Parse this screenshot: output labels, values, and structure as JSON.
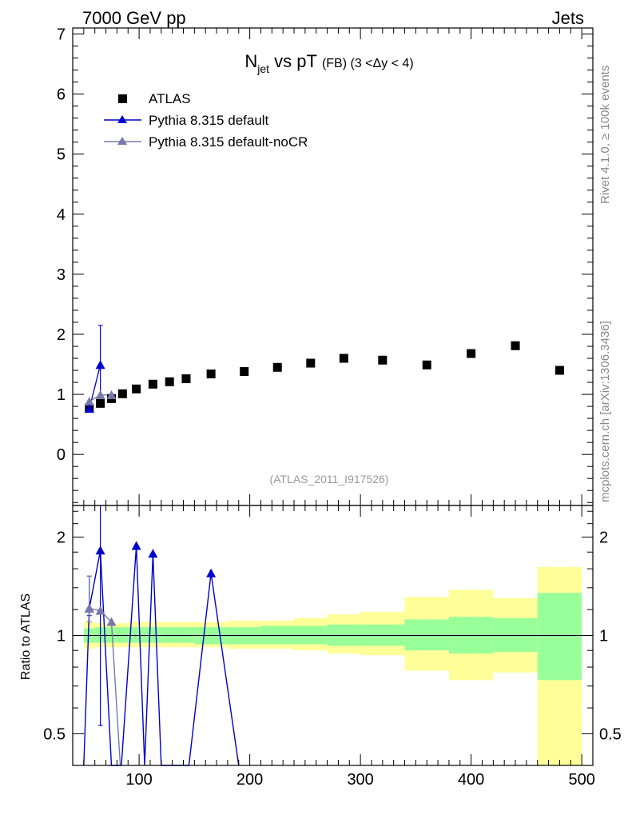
{
  "header": {
    "left": "7000 GeV pp",
    "right": "Jets"
  },
  "side_labels": {
    "rivet": "Rivet 4.1.0, ≥ 100k events",
    "mcplots": "mcplots.cern.ch [arXiv:1306.3436]"
  },
  "title": {
    "main": "N",
    "sub": "jet",
    "rest": " vs pT",
    "cut": "(FB) (3 <Δy < 4)"
  },
  "watermark": "(ATLAS_2011_I917526)",
  "legend": {
    "atlas": "ATLAS",
    "default": "Pythia 8.315 default",
    "nocr": "Pythia 8.315 default-noCR"
  },
  "colors": {
    "atlas": "#000000",
    "default": "#0000cc",
    "nocr": "#7878aa",
    "band_inner": "#99ff99",
    "band_outer": "#ffff99"
  },
  "chart_data": [
    {
      "type": "scatter",
      "panel": "main",
      "title": "N_jet vs pT (FB) (3 < Δy < 4)",
      "xlabel": "",
      "ylabel": "",
      "xlim": [
        40,
        510
      ],
      "ylim": [
        -0.85,
        7.1
      ],
      "yticks": [
        "0",
        "1",
        "2",
        "3",
        "4",
        "5",
        "6",
        "7"
      ],
      "series": [
        {
          "name": "ATLAS",
          "x": [
            55,
            65,
            75,
            85,
            97.5,
            112.5,
            127.5,
            142.5,
            165,
            195,
            225,
            255,
            285,
            320,
            360,
            400,
            440,
            480
          ],
          "y": [
            0.77,
            0.85,
            0.93,
            1.01,
            1.09,
            1.17,
            1.21,
            1.26,
            1.34,
            1.38,
            1.45,
            1.52,
            1.6,
            1.57,
            1.49,
            1.68,
            1.81,
            1.4
          ]
        },
        {
          "name": "Pythia 8.315 default",
          "x": [
            55,
            65
          ],
          "y": [
            0.76,
            1.49
          ],
          "err": [
            0.05,
            0.66
          ]
        },
        {
          "name": "Pythia 8.315 default-noCR",
          "x": [
            55,
            65,
            75
          ],
          "y": [
            0.88,
            0.99,
            0.99
          ]
        }
      ]
    },
    {
      "type": "line",
      "panel": "ratio",
      "ylabel": "Ratio to ATLAS",
      "xlabel": "",
      "xlim": [
        40,
        510
      ],
      "ylim": [
        0.4,
        2.5
      ],
      "log_y": true,
      "yticks": [
        "0.5",
        "1",
        "2"
      ],
      "xticks": [
        "100",
        "200",
        "300",
        "400",
        "500"
      ],
      "band_edges": [
        50,
        60,
        70,
        80,
        90,
        105,
        120,
        135,
        150,
        180,
        210,
        240,
        270,
        300,
        340,
        380,
        420,
        460,
        500
      ],
      "band_inner": [
        [
          0.95,
          1.05
        ],
        [
          0.95,
          1.06
        ],
        [
          0.95,
          1.06
        ],
        [
          0.95,
          1.06
        ],
        [
          0.95,
          1.06
        ],
        [
          0.95,
          1.06
        ],
        [
          0.95,
          1.06
        ],
        [
          0.95,
          1.06
        ],
        [
          0.94,
          1.06
        ],
        [
          0.94,
          1.06
        ],
        [
          0.94,
          1.07
        ],
        [
          0.94,
          1.07
        ],
        [
          0.93,
          1.08
        ],
        [
          0.93,
          1.08
        ],
        [
          0.9,
          1.12
        ],
        [
          0.88,
          1.14
        ],
        [
          0.89,
          1.13
        ],
        [
          0.73,
          1.35
        ]
      ],
      "band_outer": [
        [
          0.91,
          1.1
        ],
        [
          0.92,
          1.09
        ],
        [
          0.92,
          1.09
        ],
        [
          0.92,
          1.09
        ],
        [
          0.92,
          1.1
        ],
        [
          0.92,
          1.1
        ],
        [
          0.92,
          1.1
        ],
        [
          0.92,
          1.1
        ],
        [
          0.92,
          1.1
        ],
        [
          0.91,
          1.11
        ],
        [
          0.91,
          1.11
        ],
        [
          0.9,
          1.13
        ],
        [
          0.88,
          1.16
        ],
        [
          0.87,
          1.18
        ],
        [
          0.78,
          1.31
        ],
        [
          0.73,
          1.38
        ],
        [
          0.77,
          1.3
        ],
        [
          0.4,
          1.62
        ]
      ],
      "series": [
        {
          "name": "Pythia 8.315 default",
          "x": [
            50,
            55,
            65,
            75,
            84,
            97.5,
            105,
            112.5,
            120,
            125,
            145,
            165,
            190
          ],
          "y": [
            0.4,
            1.21,
            1.82,
            0.4,
            0.4,
            1.88,
            0.4,
            1.78,
            0.4,
            0.4,
            0.4,
            1.55,
            0.4
          ],
          "markers": [
            [
              55,
              1.21
            ],
            [
              65,
              1.82
            ],
            [
              97.5,
              1.88
            ],
            [
              112.5,
              1.78
            ],
            [
              165,
              1.55
            ]
          ],
          "err": [
            [
              55,
              1.15,
              1.52
            ],
            [
              65,
              0.53,
              2.6
            ]
          ]
        },
        {
          "name": "Pythia 8.315 default-noCR",
          "x": [
            55,
            65,
            75,
            83
          ],
          "y": [
            1.21,
            1.19,
            1.1,
            0.4
          ],
          "markers": [
            [
              55,
              1.21
            ],
            [
              65,
              1.19
            ],
            [
              75,
              1.1
            ]
          ],
          "err": [
            [
              55,
              1.1,
              1.52
            ]
          ]
        }
      ]
    }
  ]
}
